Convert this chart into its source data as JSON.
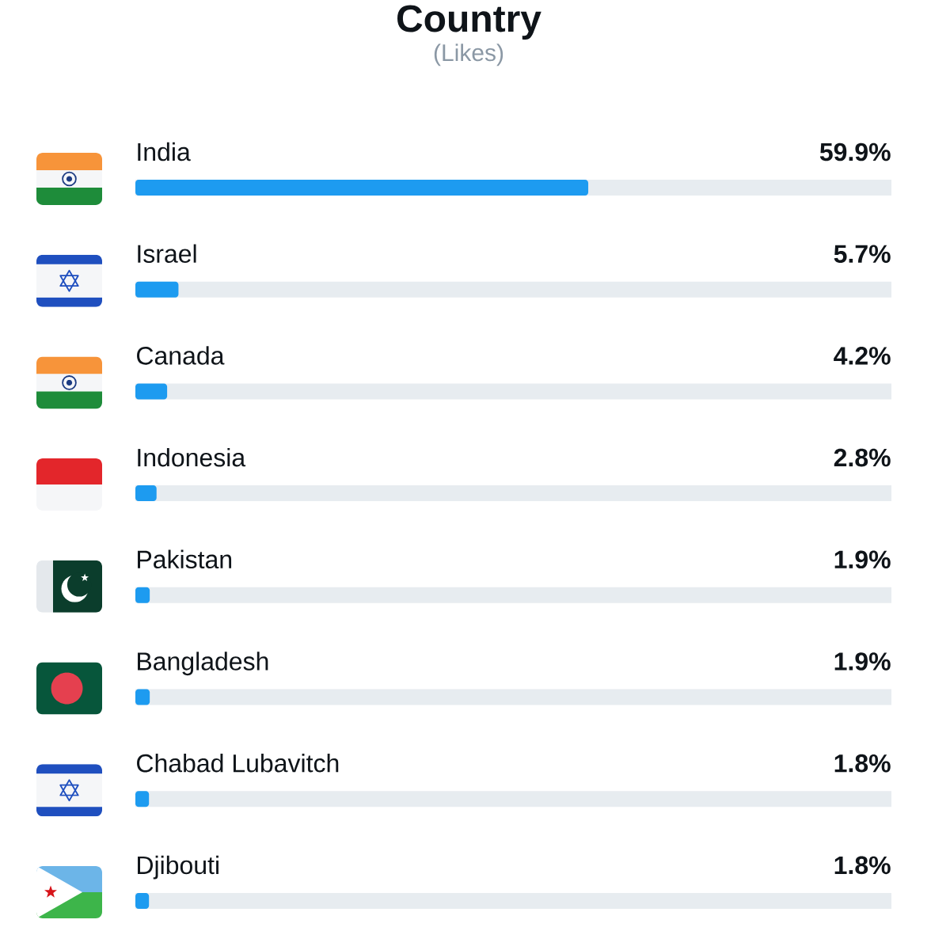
{
  "chart_data": {
    "type": "bar",
    "orientation": "horizontal",
    "title": "Country",
    "subtitle": "(Likes)",
    "categories": [
      "India",
      "Israel",
      "Canada",
      "Indonesia",
      "Pakistan",
      "Bangladesh",
      "Chabad Lubavitch",
      "Djibouti"
    ],
    "values": [
      59.9,
      5.7,
      4.2,
      2.8,
      1.9,
      1.9,
      1.8,
      1.8
    ],
    "value_labels": [
      "59.9%",
      "5.7%",
      "4.2%",
      "2.8%",
      "1.9%",
      "1.9%",
      "1.8%",
      "1.8%"
    ],
    "color": "#1d9bf0",
    "xlim": [
      0,
      100
    ],
    "grid": "y",
    "tick_labels": "y"
  }
}
